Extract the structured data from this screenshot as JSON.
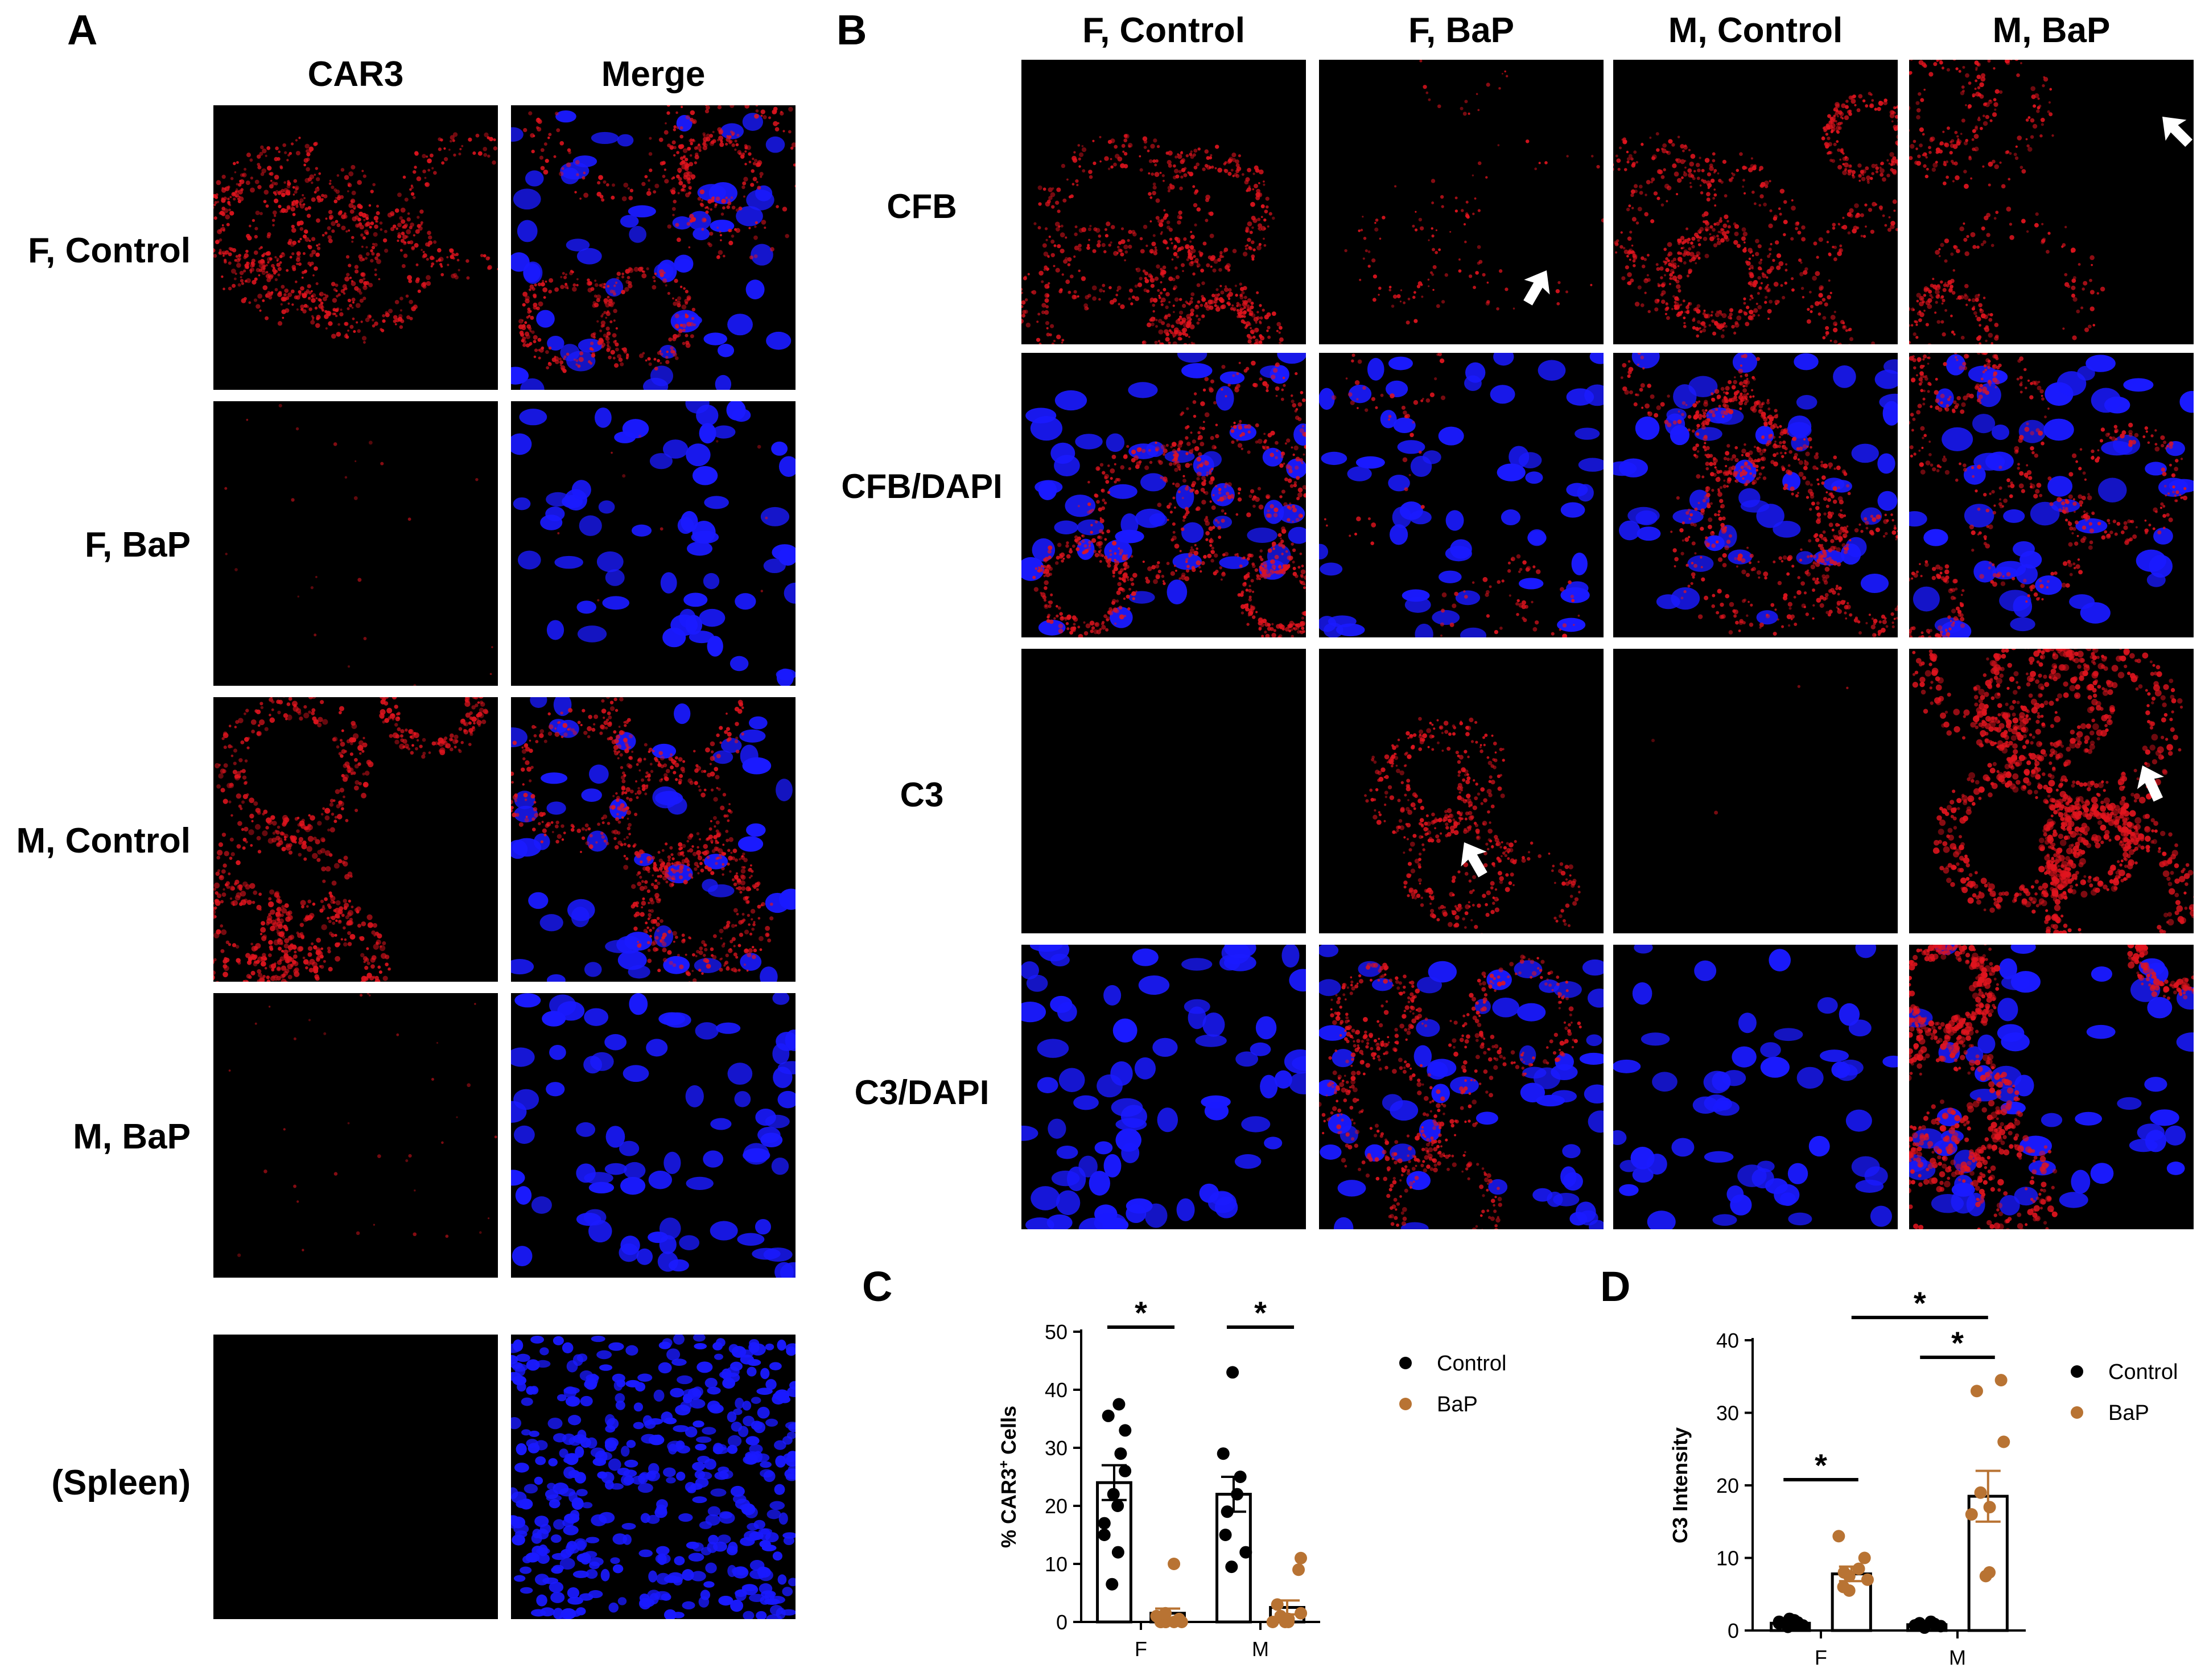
{
  "panelA": {
    "letter": "A",
    "col_headers": [
      "CAR3",
      "Merge"
    ],
    "row_labels": [
      "F, Control",
      "F, BaP",
      "M, Control",
      "M, BaP",
      "(Spleen)"
    ]
  },
  "panelB": {
    "letter": "B",
    "col_headers": [
      "F, Control",
      "F, BaP",
      "M, Control",
      "M, BaP"
    ],
    "row_labels": [
      "CFB",
      "CFB/DAPI",
      "C3",
      "C3/DAPI"
    ]
  },
  "colors": {
    "control": "#000000",
    "bap": "#b87333",
    "stain_red": "#e0141e",
    "dapi_blue": "#1a1aff"
  },
  "chart_data": [
    {
      "panel": "C",
      "type": "bar",
      "categories": [
        "F",
        "M"
      ],
      "ylabel": "% CAR3⁺ Cells",
      "xlabel": "",
      "ylim": [
        0,
        50
      ],
      "yticks": [
        0,
        10,
        20,
        30,
        40,
        50
      ],
      "legend": [
        "Control",
        "BaP"
      ],
      "legend_position": "top-right",
      "significance": [
        {
          "between": "F Control vs F BaP",
          "label": "*"
        },
        {
          "between": "M Control vs M BaP",
          "label": "*"
        }
      ],
      "series": [
        {
          "name": "Control",
          "means": [
            24,
            22
          ],
          "sem": [
            3,
            3
          ],
          "points": [
            [
              6.5,
              12,
              15,
              17,
              20,
              22,
              26,
              29,
              33,
              35.5,
              37.5
            ],
            [
              9.5,
              12,
              15,
              19,
              22,
              25,
              29,
              43
            ]
          ]
        },
        {
          "name": "BaP",
          "means": [
            1.5,
            2.5
          ],
          "sem": [
            0.8,
            1.2
          ],
          "points": [
            [
              0,
              0,
              0,
              0,
              0,
              0,
              0.5,
              1,
              1.5,
              10
            ],
            [
              0,
              0,
              0,
              0.5,
              1,
              1.5,
              3,
              9,
              11
            ]
          ]
        }
      ]
    },
    {
      "panel": "D",
      "type": "bar",
      "categories": [
        "F",
        "M"
      ],
      "ylabel": "C3 Intensity",
      "xlabel": "",
      "ylim": [
        0,
        40
      ],
      "yticks": [
        0,
        10,
        20,
        30,
        40
      ],
      "legend": [
        "Control",
        "BaP"
      ],
      "legend_position": "top-right",
      "significance": [
        {
          "between": "F Control vs F BaP",
          "label": "*"
        },
        {
          "between": "M Control vs M BaP",
          "label": "*"
        },
        {
          "between": "F BaP vs M BaP",
          "label": "*"
        }
      ],
      "series": [
        {
          "name": "Control",
          "means": [
            1,
            0.8
          ],
          "sem": [
            0.2,
            0.15
          ],
          "points": [
            [
              0.5,
              0.8,
              1,
              1.2,
              1.4,
              1.6,
              0.7,
              1.1
            ],
            [
              0.4,
              0.6,
              0.8,
              1,
              1.2,
              0.9,
              0.7
            ]
          ]
        },
        {
          "name": "BaP",
          "means": [
            7.8,
            18.5
          ],
          "sem": [
            1,
            3.5
          ],
          "points": [
            [
              5.5,
              6,
              7,
              7.5,
              8,
              8.5,
              10,
              13
            ],
            [
              7.5,
              8,
              16,
              17,
              19,
              26,
              33,
              34.5
            ]
          ]
        }
      ]
    }
  ],
  "panelC": {
    "letter": "C",
    "ylabel": "% CAR3",
    "ylabel_sup": "+",
    "ylabel_tail": " Cells",
    "ticks": [
      "0",
      "10",
      "20",
      "30",
      "40",
      "50"
    ],
    "cats": [
      "F",
      "M"
    ],
    "legend": [
      "Control",
      "BaP"
    ],
    "stars": [
      "*",
      "*"
    ]
  },
  "panelD": {
    "letter": "D",
    "ylabel": "C3 Intensity",
    "ticks": [
      "0",
      "10",
      "20",
      "30",
      "40"
    ],
    "cats": [
      "F",
      "M"
    ],
    "legend": [
      "Control",
      "BaP"
    ],
    "stars": [
      "*",
      "*",
      "*"
    ]
  }
}
